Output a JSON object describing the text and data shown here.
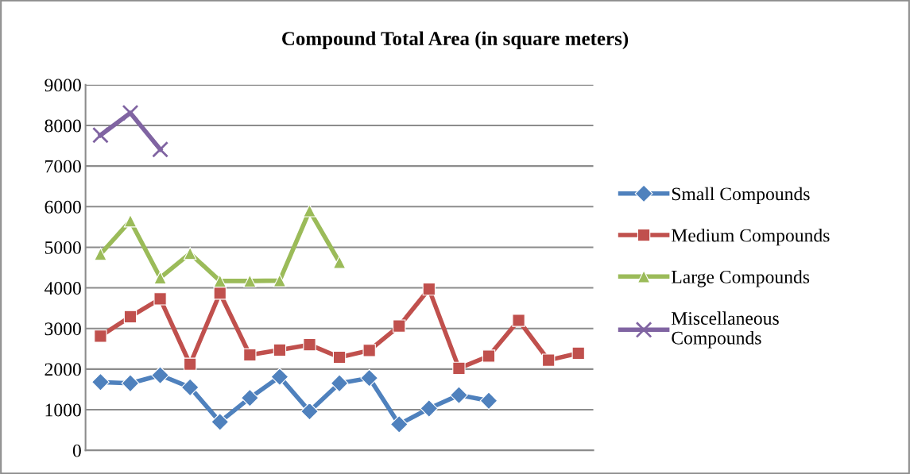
{
  "chart_data": {
    "type": "line",
    "title": "Compound Total Area (in square meters)",
    "categories": [
      null,
      null,
      null,
      null,
      null,
      null,
      null,
      null,
      null,
      null,
      null,
      null,
      null,
      null,
      null,
      null,
      null
    ],
    "series": [
      {
        "name": "Small Compounds",
        "color": "#4f81bd",
        "marker": "diamond",
        "values": [
          1680,
          1650,
          1850,
          1550,
          700,
          1290,
          1810,
          960,
          1650,
          1780,
          640,
          1030,
          1360,
          1220,
          null,
          null,
          null
        ]
      },
      {
        "name": "Medium Compounds",
        "color": "#c0504d",
        "marker": "square",
        "values": [
          2810,
          3290,
          3730,
          2120,
          3870,
          2350,
          2470,
          2600,
          2290,
          2460,
          3060,
          3970,
          2020,
          2320,
          3200,
          2220,
          2390
        ]
      },
      {
        "name": "Large Compounds",
        "color": "#9bbb59",
        "marker": "triangle",
        "values": [
          4830,
          5650,
          4250,
          4850,
          4170,
          4170,
          4180,
          5900,
          4630,
          null,
          null,
          null,
          null,
          null,
          null,
          null,
          null
        ]
      },
      {
        "name": "Miscellaneous\nCompounds",
        "color": "#8064a2",
        "marker": "cross",
        "values": [
          7760,
          8310,
          7410,
          null,
          null,
          null,
          null,
          null,
          null,
          null,
          null,
          null,
          null,
          null,
          null,
          null,
          null
        ]
      }
    ],
    "ylim": [
      0,
      9000
    ],
    "yticks": [
      0,
      1000,
      2000,
      3000,
      4000,
      5000,
      6000,
      7000,
      8000,
      9000
    ],
    "grid": "y",
    "legend": "right",
    "tick_labels": "y"
  }
}
